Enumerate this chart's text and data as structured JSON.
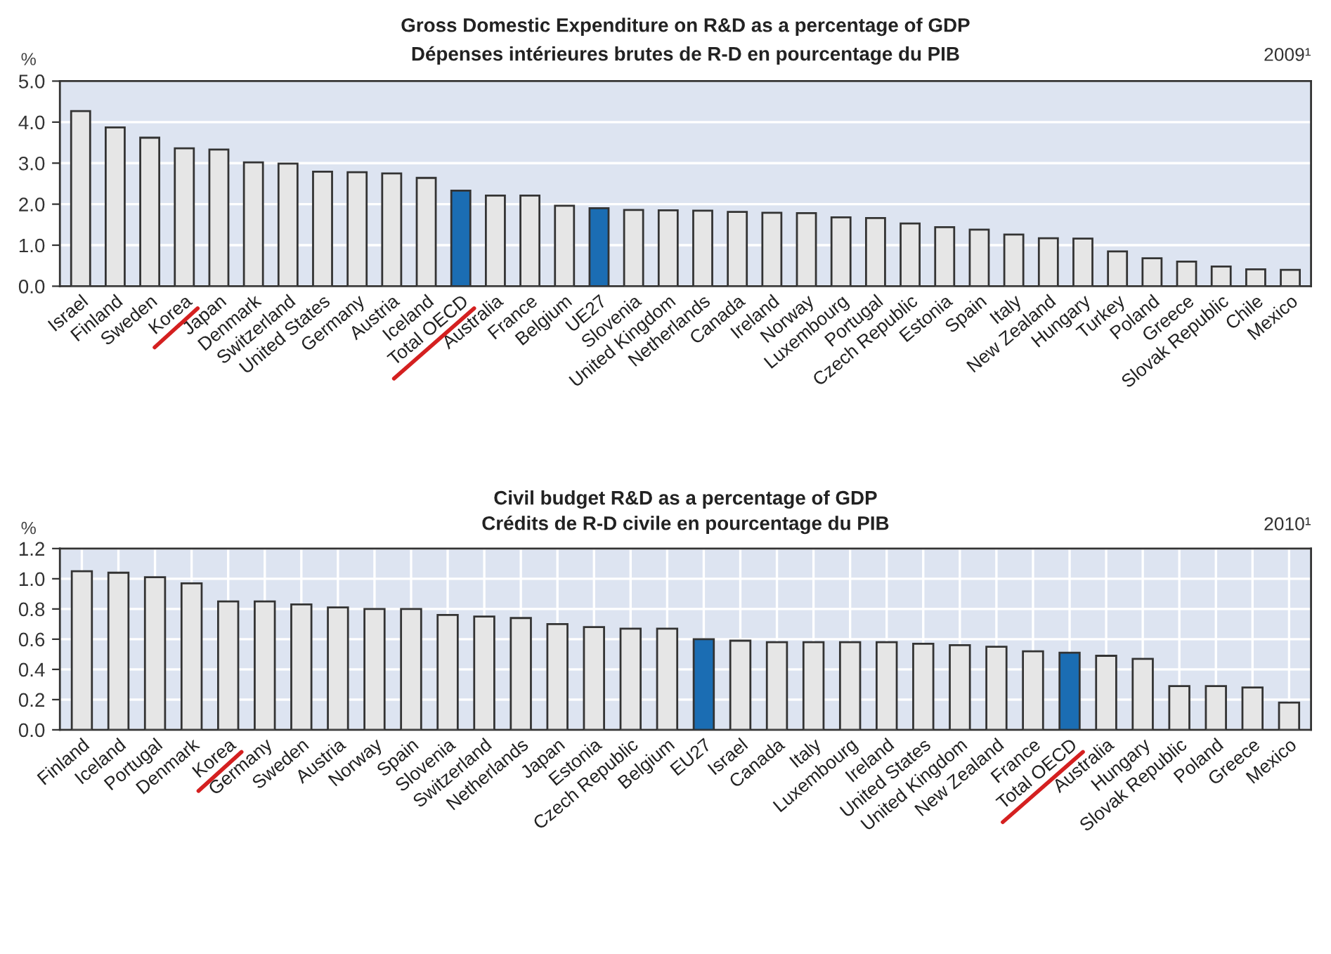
{
  "chart_data": [
    {
      "type": "bar",
      "title": "Gross Domestic Expenditure on R&D as a percentage of GDP",
      "subtitle": "Dépenses intérieures brutes de R-D en pourcentage du PIB",
      "ylabel": "%",
      "annotations": [
        "2009¹"
      ],
      "categories": [
        "Israel",
        "Finland",
        "Sweden",
        "Korea",
        "Japan",
        "Denmark",
        "Switzerland",
        "United States",
        "Germany",
        "Austria",
        "Iceland",
        "Total OECD",
        "Australia",
        "France",
        "Belgium",
        "UE27",
        "Slovenia",
        "United Kingdom",
        "Netherlands",
        "Canada",
        "Ireland",
        "Norway",
        "Luxembourg",
        "Portugal",
        "Czech Republic",
        "Estonia",
        "Spain",
        "Italy",
        "New Zealand",
        "Hungary",
        "Turkey",
        "Poland",
        "Greece",
        "Slovak Republic",
        "Chile",
        "Mexico"
      ],
      "values": [
        4.27,
        3.87,
        3.62,
        3.36,
        3.33,
        3.02,
        2.99,
        2.79,
        2.78,
        2.75,
        2.64,
        2.33,
        2.21,
        2.21,
        1.96,
        1.9,
        1.86,
        1.85,
        1.84,
        1.81,
        1.79,
        1.78,
        1.68,
        1.66,
        1.53,
        1.44,
        1.38,
        1.26,
        1.17,
        1.16,
        0.85,
        0.68,
        0.6,
        0.48,
        0.41,
        0.4
      ],
      "colors": [
        "#e6e6e6",
        "#e6e6e6",
        "#e6e6e6",
        "#e6e6e6",
        "#e6e6e6",
        "#e6e6e6",
        "#e6e6e6",
        "#e6e6e6",
        "#e6e6e6",
        "#e6e6e6",
        "#e6e6e6",
        "#1b6db3",
        "#e6e6e6",
        "#e6e6e6",
        "#e6e6e6",
        "#1b6db3",
        "#e6e6e6",
        "#e6e6e6",
        "#e6e6e6",
        "#e6e6e6",
        "#e6e6e6",
        "#e6e6e6",
        "#e6e6e6",
        "#e6e6e6",
        "#e6e6e6",
        "#e6e6e6",
        "#e6e6e6",
        "#e6e6e6",
        "#e6e6e6",
        "#e6e6e6",
        "#e6e6e6",
        "#e6e6e6",
        "#e6e6e6",
        "#e6e6e6",
        "#e6e6e6",
        "#e6e6e6"
      ],
      "ylim": [
        0,
        5
      ],
      "yticks": [
        {
          "value": 0,
          "label": "0.0"
        },
        {
          "value": 1,
          "label": "1.0"
        },
        {
          "value": 2,
          "label": "2.0"
        },
        {
          "value": 3,
          "label": "3.0"
        },
        {
          "value": 4,
          "label": "4.0"
        },
        {
          "value": 5,
          "label": "5.0"
        }
      ],
      "grid": "y"
    },
    {
      "type": "bar",
      "title": "Civil budget R&D as a percentage of GDP",
      "subtitle": "Crédits de R-D civile en pourcentage du PIB",
      "ylabel": "%",
      "annotations": [
        "2010¹"
      ],
      "categories": [
        "Finland",
        "Iceland",
        "Portugal",
        "Denmark",
        "Korea",
        "Germany",
        "Sweden",
        "Austria",
        "Norway",
        "Spain",
        "Slovenia",
        "Switzerland",
        "Netherlands",
        "Japan",
        "Estonia",
        "Czech Republic",
        "Belgium",
        "EU27",
        "Israel",
        "Canada",
        "Italy",
        "Luxembourg",
        "Ireland",
        "United States",
        "United Kingdom",
        "New Zealand",
        "France",
        "Total OECD",
        "Australia",
        "Hungary",
        "Slovak Republic",
        "Poland",
        "Greece",
        "Mexico"
      ],
      "values": [
        1.05,
        1.04,
        1.01,
        0.97,
        0.85,
        0.85,
        0.83,
        0.81,
        0.8,
        0.8,
        0.76,
        0.75,
        0.74,
        0.7,
        0.68,
        0.67,
        0.67,
        0.6,
        0.59,
        0.58,
        0.58,
        0.58,
        0.58,
        0.57,
        0.56,
        0.55,
        0.52,
        0.51,
        0.49,
        0.47,
        0.29,
        0.29,
        0.28,
        0.18
      ],
      "colors": [
        "#e6e6e6",
        "#e6e6e6",
        "#e6e6e6",
        "#e6e6e6",
        "#e6e6e6",
        "#e6e6e6",
        "#e6e6e6",
        "#e6e6e6",
        "#e6e6e6",
        "#e6e6e6",
        "#e6e6e6",
        "#e6e6e6",
        "#e6e6e6",
        "#e6e6e6",
        "#e6e6e6",
        "#e6e6e6",
        "#e6e6e6",
        "#1b6db3",
        "#e6e6e6",
        "#e6e6e6",
        "#e6e6e6",
        "#e6e6e6",
        "#e6e6e6",
        "#e6e6e6",
        "#e6e6e6",
        "#e6e6e6",
        "#e6e6e6",
        "#1b6db3",
        "#e6e6e6",
        "#e6e6e6",
        "#e6e6e6",
        "#e6e6e6",
        "#e6e6e6",
        "#e6e6e6"
      ],
      "ylim": [
        0,
        1.2
      ],
      "yticks": [
        {
          "value": 0,
          "label": "0.0"
        },
        {
          "value": 0.2,
          "label": "0.2"
        },
        {
          "value": 0.4,
          "label": "0.4"
        },
        {
          "value": 0.6,
          "label": "0.6"
        },
        {
          "value": 0.8,
          "label": "0.8"
        },
        {
          "value": 1,
          "label": "1.0"
        },
        {
          "value": 1.2,
          "label": "1.2"
        }
      ],
      "grid": true
    }
  ]
}
